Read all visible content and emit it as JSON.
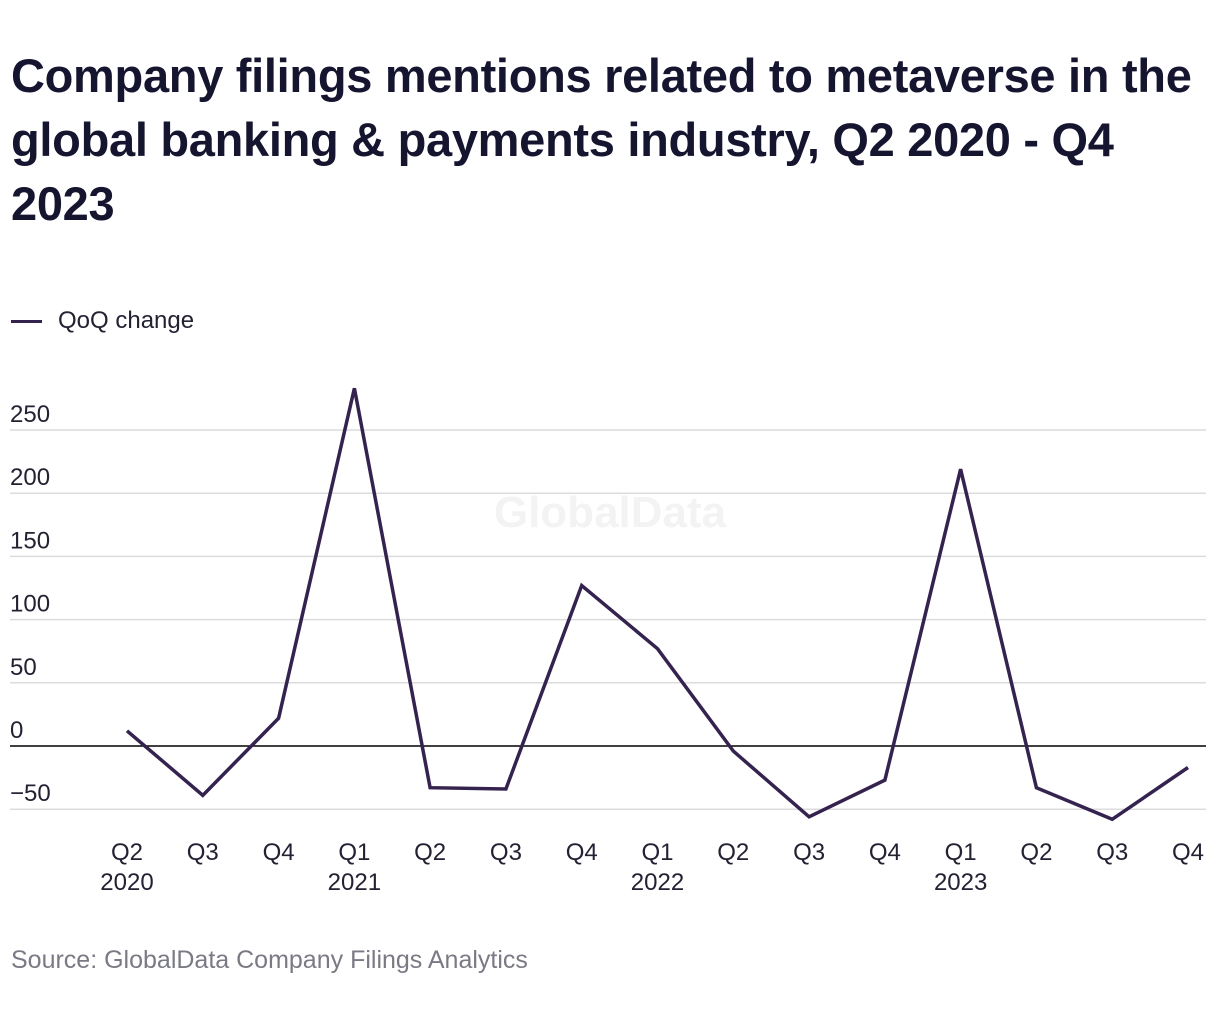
{
  "title": "Company filings mentions related to metaverse in the global banking & payments industry, Q2 2020 - Q4 2023",
  "source": "Source: GlobalData Company Filings Analytics",
  "watermark": "GlobalData",
  "colors": {
    "series": "#35234f",
    "grid": "#dcdcdc",
    "zero_line": "#000000",
    "axis_text": "#222233",
    "source_text": "#7a7a85",
    "watermark": "#f3f3f3"
  },
  "chart_data": {
    "type": "line",
    "title": "Company filings mentions related to metaverse in the global banking & payments industry, Q2 2020 - Q4 2023",
    "xlabel": "",
    "ylabel": "",
    "ylim": [
      -60,
      280
    ],
    "yticks": [
      250,
      200,
      150,
      100,
      50,
      0,
      -50
    ],
    "ytick_labels": [
      "250",
      "200",
      "150",
      "100",
      "50",
      "0",
      "−50"
    ],
    "grid": true,
    "legend_position": "top-left",
    "categories": [
      "Q2 2020",
      "Q3 2020",
      "Q4 2020",
      "Q1 2021",
      "Q2 2021",
      "Q3 2021",
      "Q4 2021",
      "Q1 2022",
      "Q2 2022",
      "Q3 2022",
      "Q4 2022",
      "Q1 2023",
      "Q2 2023",
      "Q3 2023",
      "Q4 2023"
    ],
    "tick_labels": [
      {
        "quarter": "Q2",
        "year": "2020"
      },
      {
        "quarter": "Q3",
        "year": ""
      },
      {
        "quarter": "Q4",
        "year": ""
      },
      {
        "quarter": "Q1",
        "year": "2021"
      },
      {
        "quarter": "Q2",
        "year": ""
      },
      {
        "quarter": "Q3",
        "year": ""
      },
      {
        "quarter": "Q4",
        "year": ""
      },
      {
        "quarter": "Q1",
        "year": "2022"
      },
      {
        "quarter": "Q2",
        "year": ""
      },
      {
        "quarter": "Q3",
        "year": ""
      },
      {
        "quarter": "Q4",
        "year": ""
      },
      {
        "quarter": "Q1",
        "year": "2023"
      },
      {
        "quarter": "Q2",
        "year": ""
      },
      {
        "quarter": "Q3",
        "year": ""
      },
      {
        "quarter": "Q4",
        "year": ""
      }
    ],
    "series": [
      {
        "name": "QoQ change",
        "values": [
          12,
          -39,
          22,
          283,
          -33,
          -34,
          127,
          77,
          -4,
          -56,
          -27,
          219,
          -33,
          -58,
          -17
        ]
      }
    ]
  }
}
